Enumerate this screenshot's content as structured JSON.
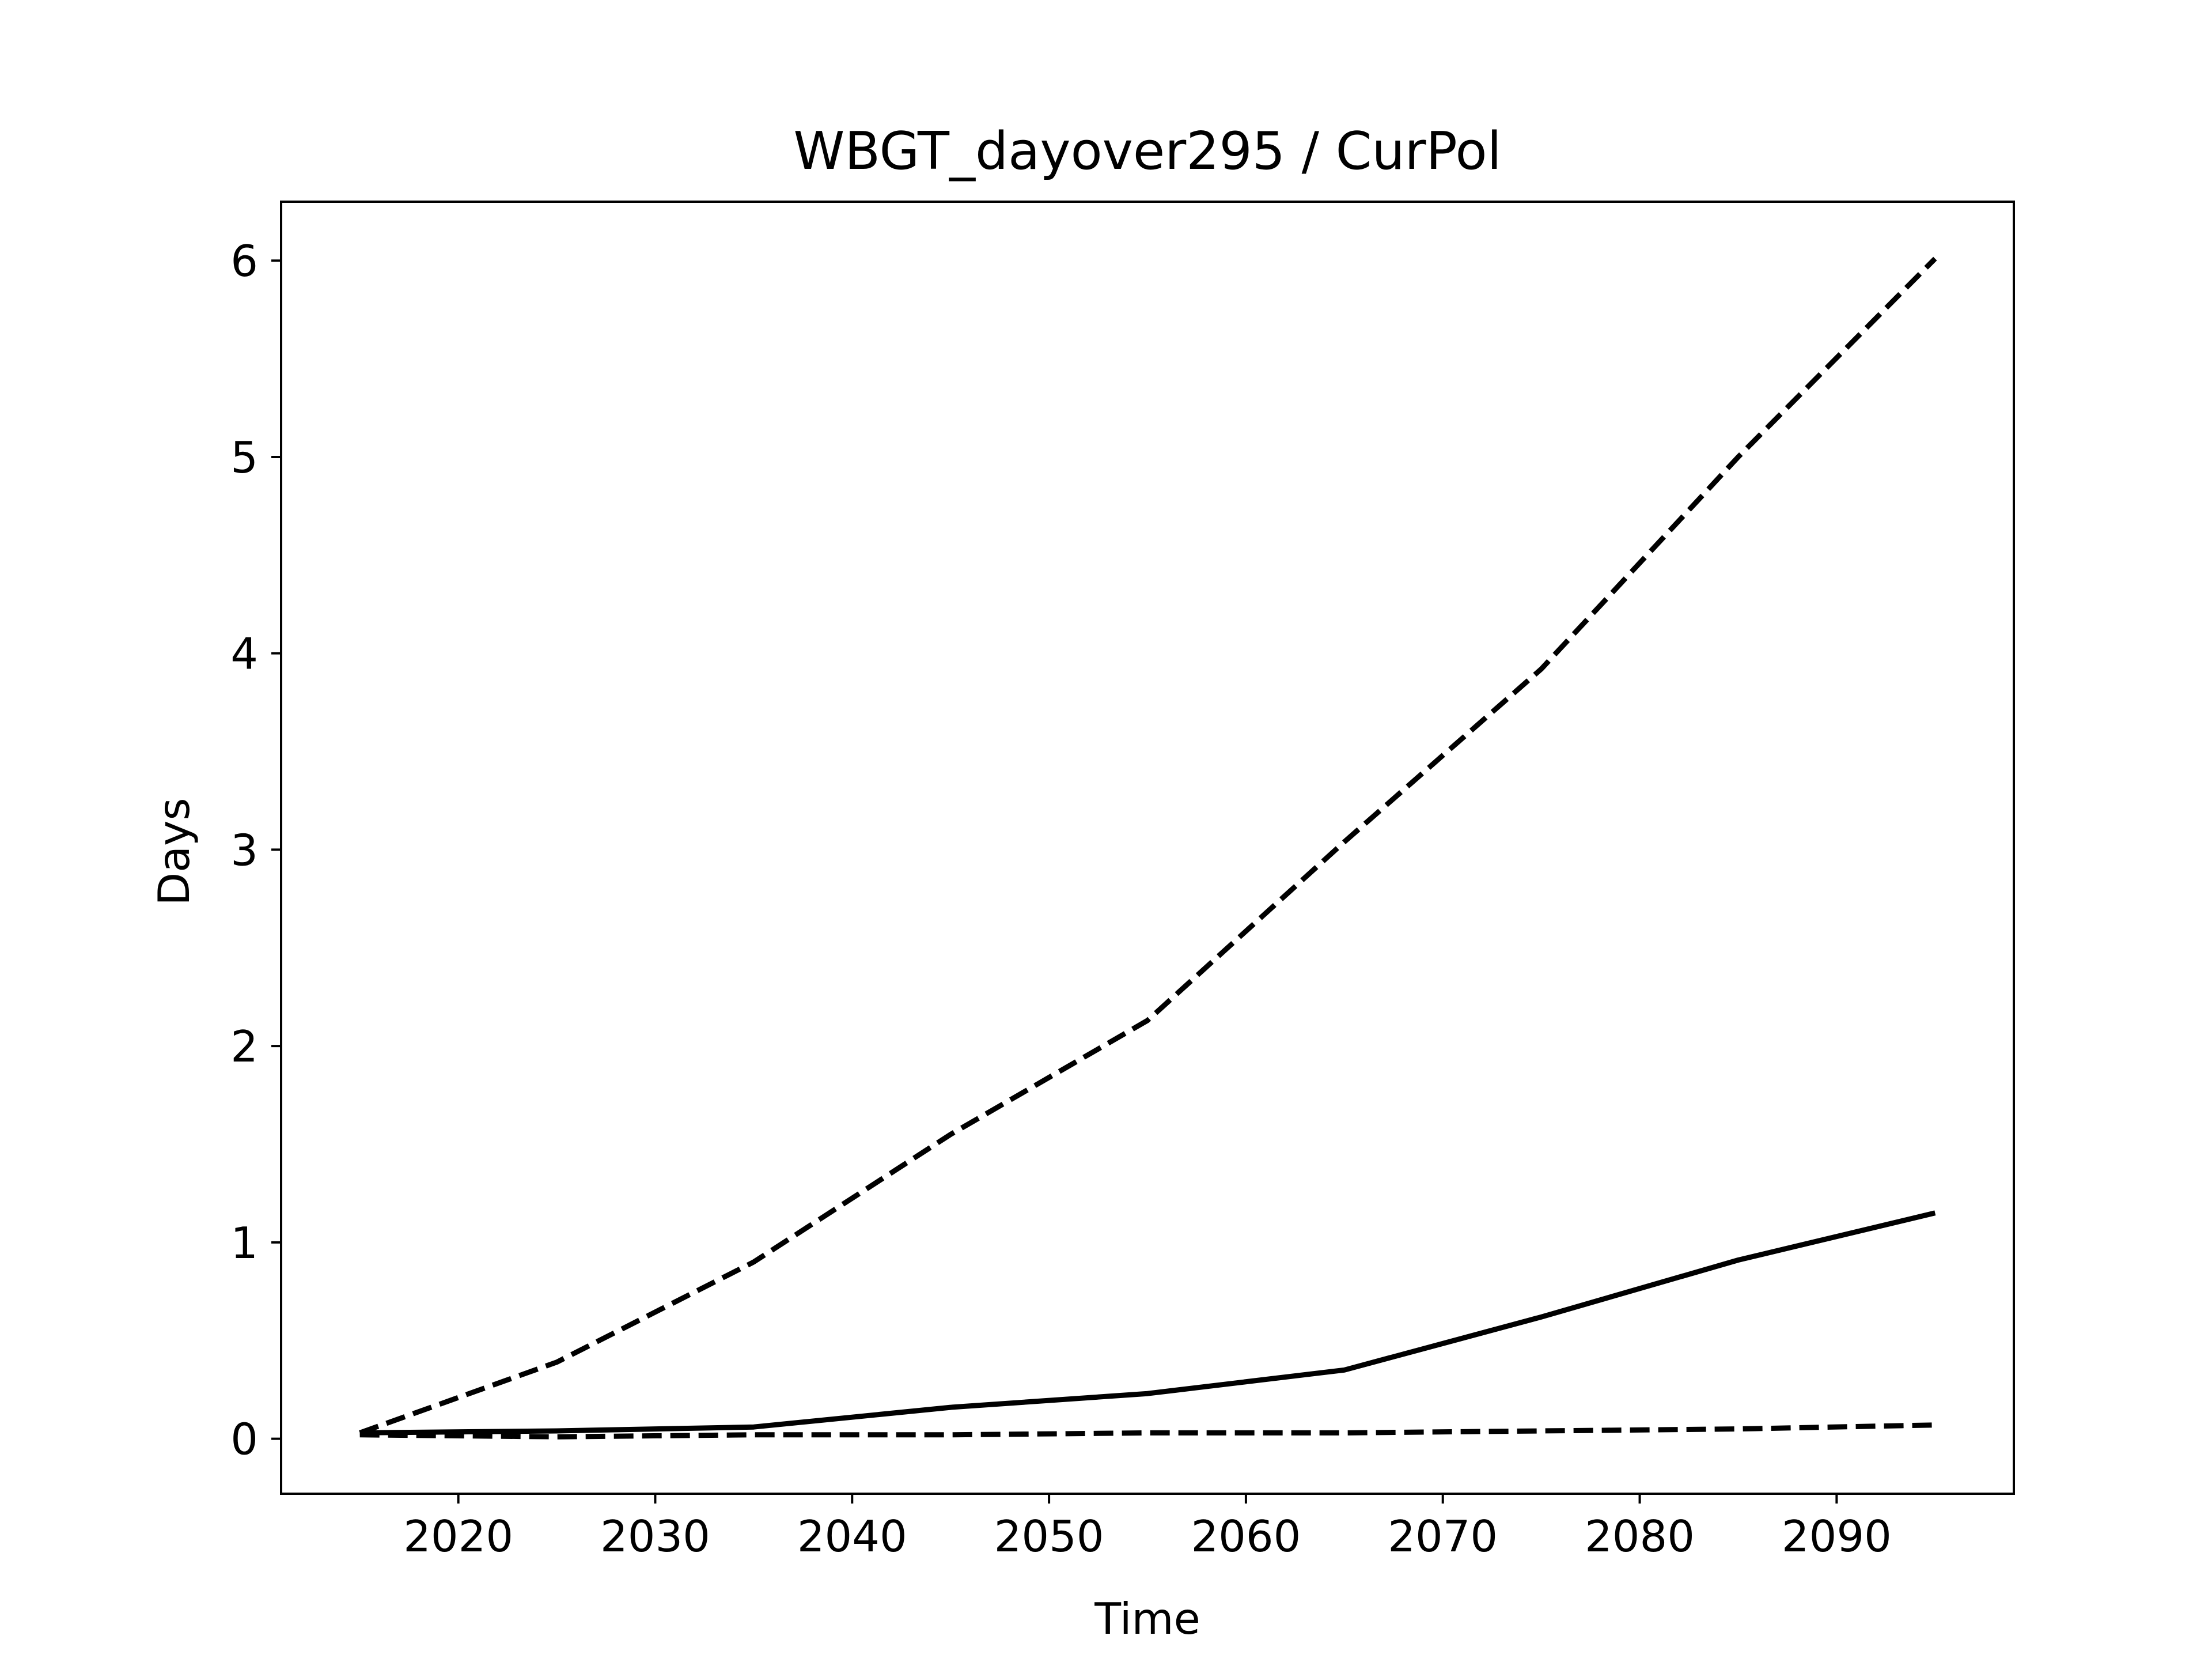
{
  "chart_data": {
    "type": "line",
    "title": "WBGT_dayover295 / CurPol",
    "xlabel": "Time",
    "ylabel": "Days",
    "x": [
      2015,
      2025,
      2035,
      2045,
      2055,
      2065,
      2075,
      2085,
      2095
    ],
    "xlim": [
      2011,
      2099
    ],
    "ylim": [
      -0.28,
      6.3
    ],
    "xticks": [
      2020,
      2030,
      2040,
      2050,
      2060,
      2070,
      2080,
      2090
    ],
    "yticks": [
      0,
      1,
      2,
      3,
      4,
      5,
      6
    ],
    "grid": false,
    "series": [
      {
        "style": "dashed",
        "color": "#000000",
        "values": [
          0.03,
          0.39,
          0.9,
          1.55,
          2.13,
          3.04,
          3.92,
          5.0,
          6.01
        ]
      },
      {
        "style": "solid",
        "color": "#000000",
        "values": [
          0.03,
          0.04,
          0.06,
          0.16,
          0.23,
          0.35,
          0.62,
          0.91,
          1.15
        ]
      },
      {
        "style": "dashed",
        "color": "#000000",
        "values": [
          0.02,
          0.01,
          0.02,
          0.02,
          0.03,
          0.03,
          0.04,
          0.05,
          0.07
        ]
      }
    ]
  }
}
